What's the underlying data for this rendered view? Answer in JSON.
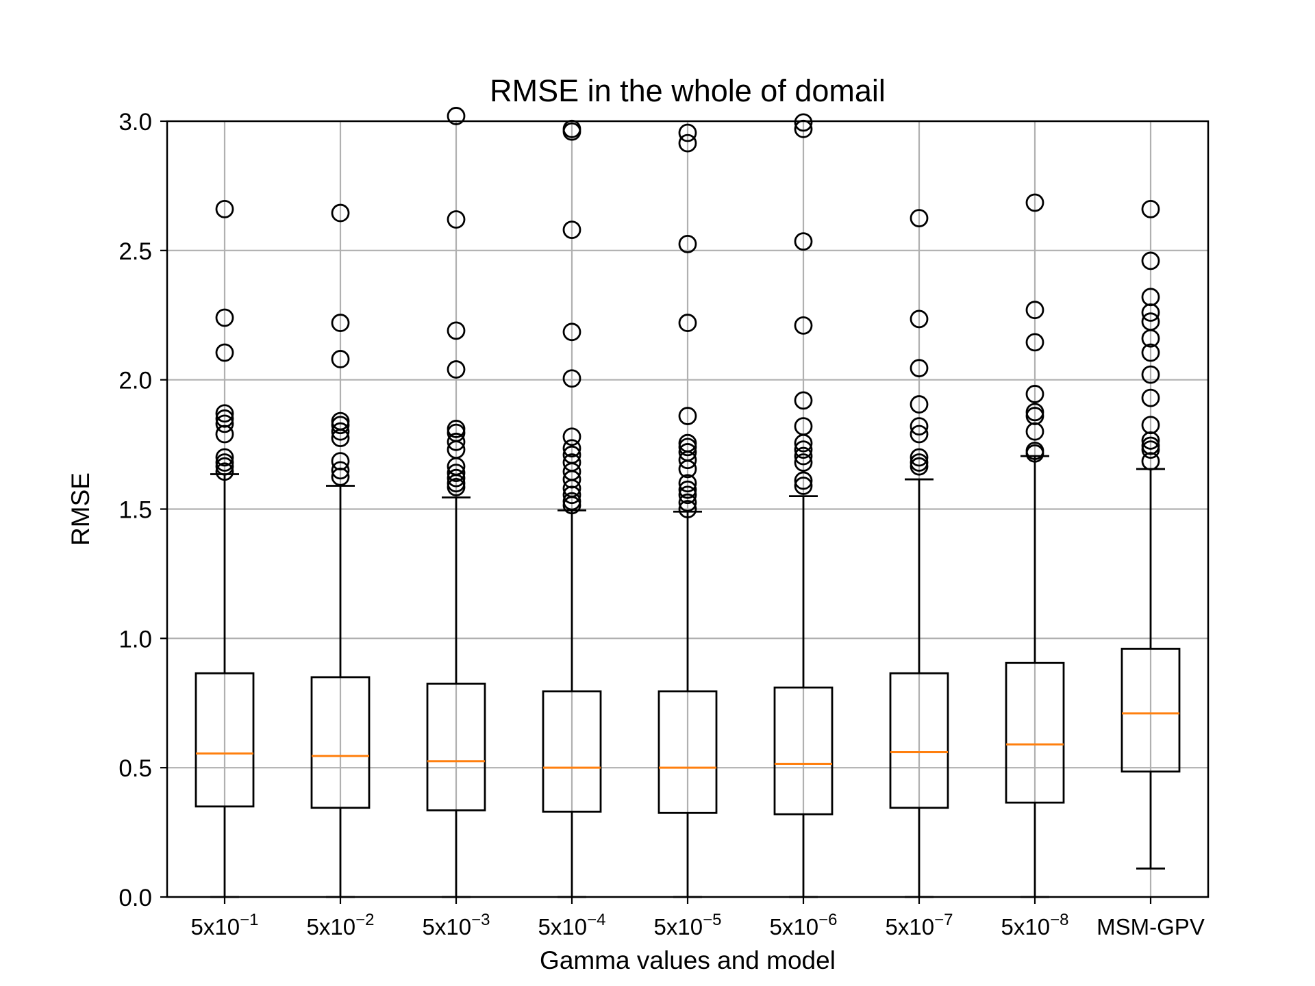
{
  "chart_data": {
    "type": "box",
    "title": "RMSE in the whole of domail",
    "xlabel": "Gamma values and model",
    "ylabel": "RMSE",
    "ylim": [
      0.0,
      3.0
    ],
    "yticks": [
      "0.0",
      "0.5",
      "1.0",
      "1.5",
      "2.0",
      "2.5",
      "3.0"
    ],
    "grid": true,
    "categories": [
      {
        "base": "5x10",
        "exp": "−1"
      },
      {
        "base": "5x10",
        "exp": "−2"
      },
      {
        "base": "5x10",
        "exp": "−3"
      },
      {
        "base": "5x10",
        "exp": "−4"
      },
      {
        "base": "5x10",
        "exp": "−5"
      },
      {
        "base": "5x10",
        "exp": "−6"
      },
      {
        "base": "5x10",
        "exp": "−7"
      },
      {
        "base": "5x10",
        "exp": "−8"
      },
      {
        "base": "MSM-GPV",
        "exp": ""
      }
    ],
    "boxes": [
      {
        "whisker_low": 0.0,
        "q1": 0.35,
        "median": 0.555,
        "q3": 0.865,
        "whisker_high": 1.635,
        "outliers": [
          2.66,
          2.24,
          2.105,
          1.87,
          1.85,
          1.83,
          1.79,
          1.7,
          1.68,
          1.665,
          1.645
        ]
      },
      {
        "whisker_low": 0.0,
        "q1": 0.345,
        "median": 0.545,
        "q3": 0.85,
        "whisker_high": 1.59,
        "outliers": [
          2.645,
          2.22,
          2.08,
          1.84,
          1.825,
          1.8,
          1.775,
          1.685,
          1.65,
          1.625
        ]
      },
      {
        "whisker_low": 0.0,
        "q1": 0.335,
        "median": 0.525,
        "q3": 0.825,
        "whisker_high": 1.545,
        "outliers": [
          3.02,
          2.62,
          2.19,
          2.04,
          1.81,
          1.795,
          1.76,
          1.73,
          1.665,
          1.64,
          1.62,
          1.6,
          1.585
        ]
      },
      {
        "whisker_low": 0.0,
        "q1": 0.33,
        "median": 0.5,
        "q3": 0.795,
        "whisker_high": 1.495,
        "outliers": [
          2.97,
          2.96,
          2.58,
          2.185,
          2.005,
          1.78,
          1.735,
          1.71,
          1.68,
          1.645,
          1.615,
          1.58,
          1.555,
          1.53,
          1.515
        ]
      },
      {
        "whisker_low": 0.0,
        "q1": 0.325,
        "median": 0.5,
        "q3": 0.795,
        "whisker_high": 1.49,
        "outliers": [
          2.955,
          2.915,
          2.525,
          2.22,
          1.86,
          1.755,
          1.74,
          1.72,
          1.69,
          1.655,
          1.6,
          1.575,
          1.555,
          1.525,
          1.5
        ]
      },
      {
        "whisker_low": 0.0,
        "q1": 0.32,
        "median": 0.515,
        "q3": 0.81,
        "whisker_high": 1.55,
        "outliers": [
          2.995,
          2.97,
          2.535,
          2.21,
          1.92,
          1.82,
          1.755,
          1.73,
          1.705,
          1.68,
          1.61,
          1.59
        ]
      },
      {
        "whisker_low": 0.0,
        "q1": 0.345,
        "median": 0.56,
        "q3": 0.865,
        "whisker_high": 1.615,
        "outliers": [
          2.625,
          2.235,
          2.045,
          1.905,
          1.82,
          1.79,
          1.7,
          1.68,
          1.665
        ]
      },
      {
        "whisker_low": 0.0,
        "q1": 0.365,
        "median": 0.59,
        "q3": 0.905,
        "whisker_high": 1.705,
        "outliers": [
          2.685,
          2.27,
          2.145,
          1.945,
          1.875,
          1.86,
          1.8,
          1.725,
          1.715
        ]
      },
      {
        "whisker_low": 0.11,
        "q1": 0.485,
        "median": 0.71,
        "q3": 0.96,
        "whisker_high": 1.655,
        "outliers": [
          2.66,
          2.46,
          2.32,
          2.26,
          2.225,
          2.16,
          2.105,
          2.02,
          1.93,
          1.825,
          1.765,
          1.745,
          1.73,
          1.685
        ]
      }
    ],
    "colors": {
      "box": "#000000",
      "median": "#ff7f0e",
      "grid": "#b0b0b0",
      "outlier": "#000000"
    }
  }
}
